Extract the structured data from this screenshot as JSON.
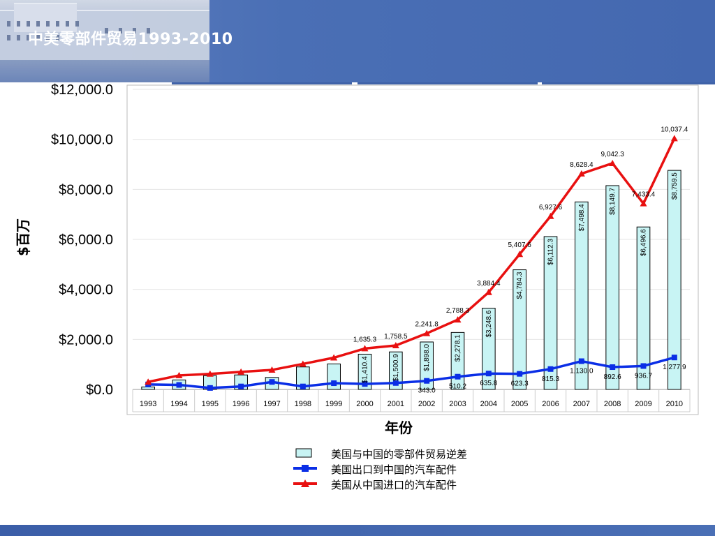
{
  "page": {
    "title": "中美零部件贸易1993-2010"
  },
  "chart_data": {
    "type": "bar",
    "categories": [
      "1993",
      "1994",
      "1995",
      "1996",
      "1997",
      "1998",
      "1999",
      "2000",
      "2001",
      "2002",
      "2003",
      "2004",
      "2005",
      "2006",
      "2007",
      "2008",
      "2009",
      "2010"
    ],
    "xlabel": "年份",
    "ylabel": "$百万",
    "ylim": [
      0,
      12000
    ],
    "yticks": [
      "$0.0",
      "$2,000.0",
      "$4,000.0",
      "$6,000.0",
      "$8,000.0",
      "$10,000.0",
      "$12,000.0"
    ],
    "legend_position": "bottom",
    "series": [
      {
        "name": "美国与中国的零部件贸易逆差",
        "kind": "bar",
        "color": "#c8f4f4",
        "values": [
          100,
          380,
          550,
          580,
          480,
          900,
          1020,
          1410.4,
          1500.9,
          1898.0,
          2278.1,
          3248.6,
          4784.3,
          6112.3,
          7498.4,
          8149.7,
          6496.6,
          8759.5
        ],
        "labels": [
          "",
          "",
          "",
          "",
          "",
          "",
          "",
          "$1,410.4",
          "$1,500.9",
          "$1,898.0",
          "$2,278.1",
          "$3,248.6",
          "$4,784.3",
          "$6,112.3",
          "$7,498.4",
          "$8,149.7",
          "$6,496.6",
          "$8,759.5"
        ]
      },
      {
        "name": "美国出口到中国的汽车配件",
        "kind": "line",
        "color": "#0a2ee6",
        "values": [
          200,
          180,
          60,
          120,
          300,
          120,
          250,
          220,
          257.6,
          343.0,
          510.2,
          635.8,
          623.3,
          815.3,
          1130.0,
          892.6,
          936.7,
          1277.9
        ],
        "labels": [
          "",
          "",
          "",
          "",
          "",
          "",
          "",
          "",
          "",
          "343.0",
          "510.2",
          "635.8",
          "623.3",
          "815.3",
          "1,130.0",
          "892.6",
          "936.7",
          "1,277.9"
        ]
      },
      {
        "name": "美国从中国进口的汽车配件",
        "kind": "line",
        "color": "#e81010",
        "values": [
          300,
          560,
          620,
          700,
          780,
          1020,
          1270,
          1635.3,
          1758.5,
          2241.8,
          2788.3,
          3884.4,
          5407.6,
          6927.6,
          8628.4,
          9042.3,
          7433.4,
          10037.4
        ],
        "labels": [
          "",
          "",
          "",
          "",
          "",
          "",
          "",
          "1,635.3",
          "1,758.5",
          "2,241.8",
          "2,788.3",
          "3,884.4",
          "5,407.6",
          "6,927.6",
          "8,628.4",
          "9,042.3",
          "7,433.4",
          "10,037.4"
        ]
      }
    ]
  }
}
